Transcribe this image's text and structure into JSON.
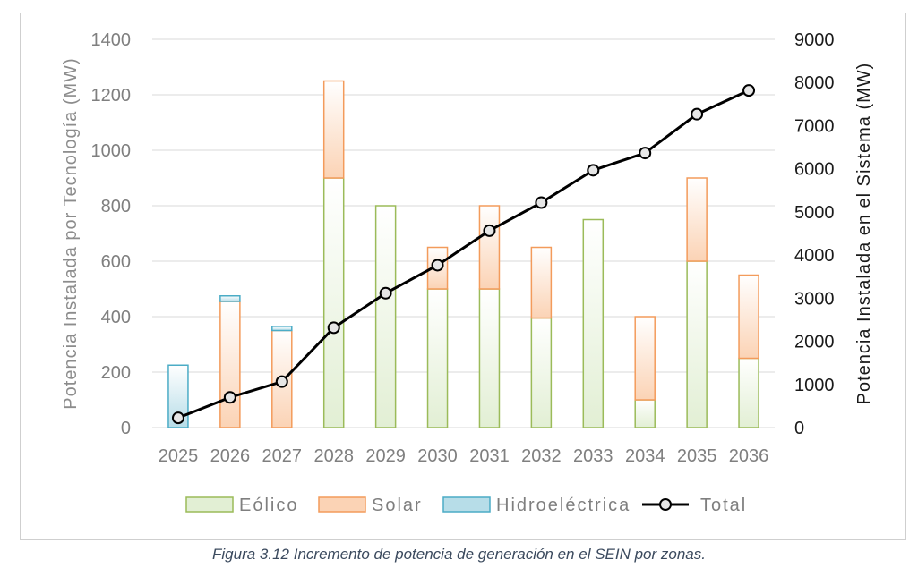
{
  "chart_data": {
    "type": "bar",
    "stacked": true,
    "categories": [
      "2025",
      "2026",
      "2027",
      "2028",
      "2029",
      "2030",
      "2031",
      "2032",
      "2033",
      "2034",
      "2035",
      "2036"
    ],
    "series": [
      {
        "name": "Eólico",
        "axis": "left",
        "color_fill": "#e2efd4",
        "color_stroke": "#9bbb59",
        "values": [
          0,
          0,
          0,
          900,
          800,
          500,
          500,
          395,
          750,
          100,
          600,
          250
        ]
      },
      {
        "name": "Solar",
        "axis": "left",
        "color_fill": "#fbd3b5",
        "color_stroke": "#f39b5b",
        "values": [
          0,
          455,
          350,
          350,
          0,
          150,
          300,
          255,
          0,
          300,
          300,
          300
        ]
      },
      {
        "name": "Hidroeléctrica",
        "axis": "left",
        "color_fill": "#b7dde8",
        "color_stroke": "#4bacc6",
        "values": [
          225,
          20,
          15,
          0,
          0,
          0,
          0,
          0,
          0,
          0,
          0,
          0
        ]
      },
      {
        "name": "Total",
        "type": "line",
        "axis": "right",
        "color_stroke": "#000000",
        "values": [
          225,
          700,
          1065,
          2315,
          3115,
          3765,
          4565,
          5215,
          5965,
          6365,
          7265,
          7815
        ]
      }
    ],
    "ylabel": "Potencia Instalada por Tecnología  (MW)",
    "ylabel_right": "Potencia Instalada en el Sistema  (MW)",
    "ylim": [
      0,
      1400
    ],
    "ylim_right": [
      0,
      9000
    ],
    "yticks": [
      "0",
      "200",
      "400",
      "600",
      "800",
      "1000",
      "1200",
      "1400"
    ],
    "yticks_right": [
      "0",
      "1000",
      "2000",
      "3000",
      "4000",
      "5000",
      "6000",
      "7000",
      "8000",
      "9000"
    ],
    "grid": true,
    "legend_position": "bottom"
  },
  "caption": "Figura 3.12 Incremento de potencia de generación en el SEIN por zonas."
}
